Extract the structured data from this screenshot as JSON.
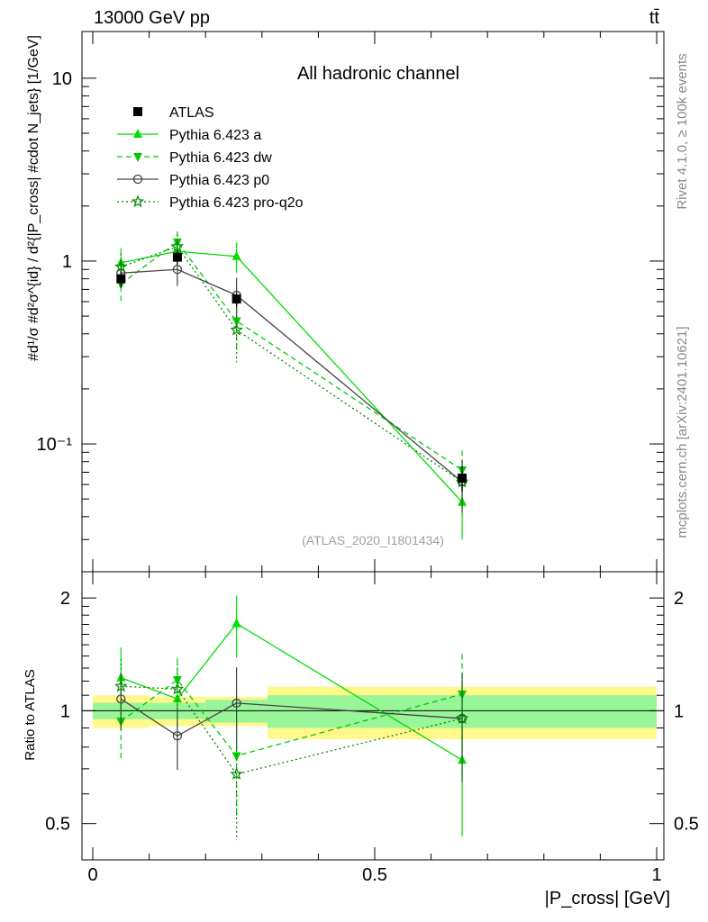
{
  "header": {
    "energy": "13000 GeV pp",
    "process": "tt̄"
  },
  "side": {
    "rivet": "Rivet 4.1.0, ≥ 100k events",
    "mcplots": "mcplots.cern.ch [arXiv:2401.10621]"
  },
  "chart_data": {
    "type": "line",
    "title": "All hadronic channel",
    "analysis_label": "(ATLAS_2020_I1801434)",
    "ylabel_main": "#d¹/σ #d²σ^{id} / d²{|P_cross| #cdot N_jets} [1/GeV]",
    "ylabel_ratio": "Ratio to ATLAS",
    "xlabel": "|P_cross| [GeV]",
    "xlim": [
      0,
      1
    ],
    "ylim_main": [
      0.02,
      18
    ],
    "ylim_ratio": [
      0.4,
      2.35
    ],
    "yscale": "log",
    "x_ticks": [
      "0",
      "0.5",
      "1"
    ],
    "y_ticks_main": [
      "10",
      "1",
      "10⁻¹"
    ],
    "y_ticks_ratio": [
      "2",
      "1",
      "0.5"
    ],
    "bins": [
      [
        0.0,
        0.1
      ],
      [
        0.1,
        0.2
      ],
      [
        0.2,
        0.31
      ],
      [
        0.31,
        1.0
      ]
    ],
    "x": [
      0.05,
      0.15,
      0.255,
      0.655
    ],
    "data": {
      "name": "ATLAS",
      "values": [
        0.8,
        1.05,
        0.62,
        0.065
      ],
      "stat_band": [
        0.05,
        0.05,
        0.07,
        0.1
      ],
      "total_band": [
        0.1,
        0.09,
        0.09,
        0.16
      ]
    },
    "series": [
      {
        "name": "Pythia 6.423 a",
        "color": "#00dd00",
        "dash": "solid",
        "marker": "triangle-up",
        "values": [
          0.98,
          1.13,
          1.06,
          0.048
        ],
        "err_low": [
          0.2,
          0.2,
          0.2,
          0.018
        ],
        "err_high": [
          0.2,
          0.2,
          0.2,
          0.018
        ]
      },
      {
        "name": "Pythia 6.423 dw",
        "color": "#00cc00",
        "dash": "dashed",
        "marker": "triangle-down",
        "values": [
          0.75,
          1.27,
          0.47,
          0.072
        ],
        "err_low": [
          0.16,
          0.18,
          0.15,
          0.02
        ],
        "err_high": [
          0.16,
          0.18,
          0.15,
          0.02
        ]
      },
      {
        "name": "Pythia 6.423 p0",
        "color": "#444444",
        "dash": "solid",
        "marker": "open-circle",
        "values": [
          0.86,
          0.9,
          0.65,
          0.062
        ],
        "err_low": [
          0.15,
          0.17,
          0.16,
          0.02
        ],
        "err_high": [
          0.15,
          0.17,
          0.16,
          0.02
        ]
      },
      {
        "name": "Pythia 6.423 pro-q2o",
        "color": "#008800",
        "dash": "dotted",
        "marker": "open-star",
        "values": [
          0.93,
          1.2,
          0.42,
          0.062
        ],
        "err_low": [
          0.17,
          0.2,
          0.14,
          0.02
        ],
        "err_high": [
          0.17,
          0.2,
          0.14,
          0.02
        ]
      }
    ]
  }
}
